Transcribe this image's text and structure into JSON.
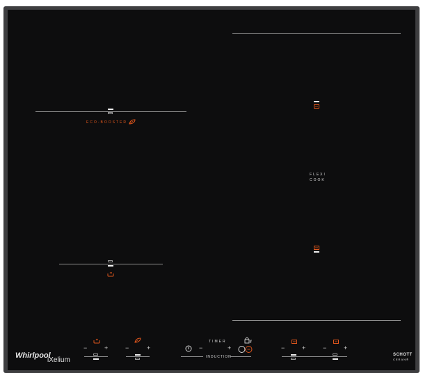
{
  "labels": {
    "eco_booster": "ECO-BOOSTER",
    "flexi_line1": "FLEXI",
    "flexi_line2": "COOK",
    "timer": "TIMER",
    "induction": "INDUCTION"
  },
  "controls": {
    "minus": "−",
    "plus": "+"
  },
  "brand": {
    "whirlpool": "Whirlpool",
    "ixelium": "iXelium",
    "schott_line1": "SCHOTT",
    "schott_line2": "CERAN®"
  },
  "colors": {
    "glass": "#0d0d0e",
    "frame": "#3e3e40",
    "accent": "#e0561c",
    "line": "#8f8f8f"
  },
  "icons": [
    "leaf-icon",
    "pot-steam-icon",
    "square-zone-icon",
    "power-icon",
    "lock-icon",
    "circle-zone-icon"
  ]
}
